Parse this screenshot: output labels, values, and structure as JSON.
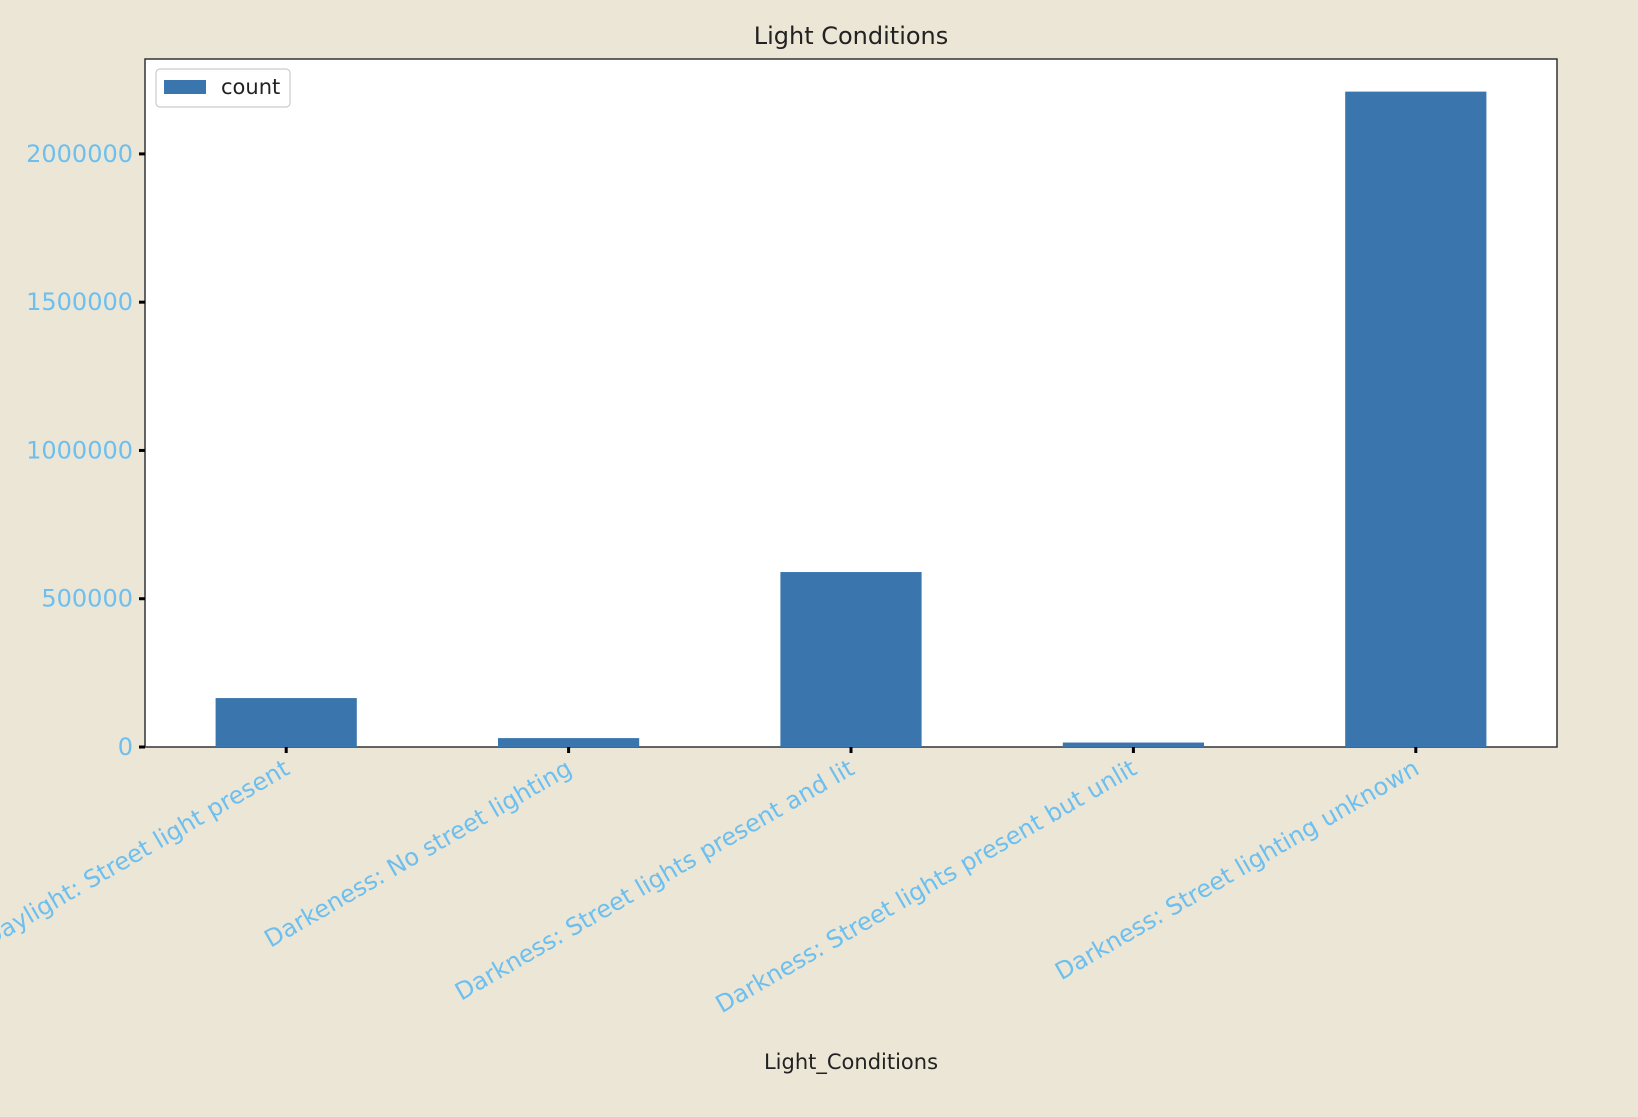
{
  "colors": {
    "background": "#ece6d6",
    "plot_background": "#ffffff",
    "bar": "#3a75ae",
    "tick_label": "#6cbfef",
    "title_text": "#222222"
  },
  "chart_data": {
    "type": "bar",
    "title": "Light Conditions",
    "xlabel": "Light_Conditions",
    "ylabel": "",
    "categories": [
      "Daylight: Street light present",
      "Darkeness: No street lighting",
      "Darkness: Street lights present and lit",
      "Darkness: Street lights present but unlit",
      "Darkness: Street lighting unknown"
    ],
    "series": [
      {
        "name": "count",
        "values": [
          165000,
          30000,
          590000,
          15000,
          2210000
        ]
      }
    ],
    "ylim": [
      0,
      2320000
    ],
    "yticks": [
      0,
      500000,
      1000000,
      1500000,
      2000000
    ],
    "ytick_labels": [
      "0",
      "500000",
      "1000000",
      "1500000",
      "2000000"
    ],
    "legend": "top-left",
    "grid": false
  }
}
